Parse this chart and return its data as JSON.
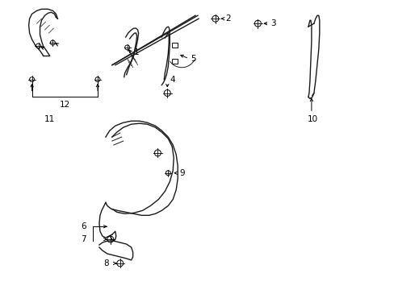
{
  "bg_color": "#ffffff",
  "line_color": "#1a1a1a",
  "fig_width": 4.89,
  "fig_height": 3.6,
  "dpi": 100,
  "label_fs": 7.5,
  "lw_main": 1.0,
  "lw_thin": 0.7
}
